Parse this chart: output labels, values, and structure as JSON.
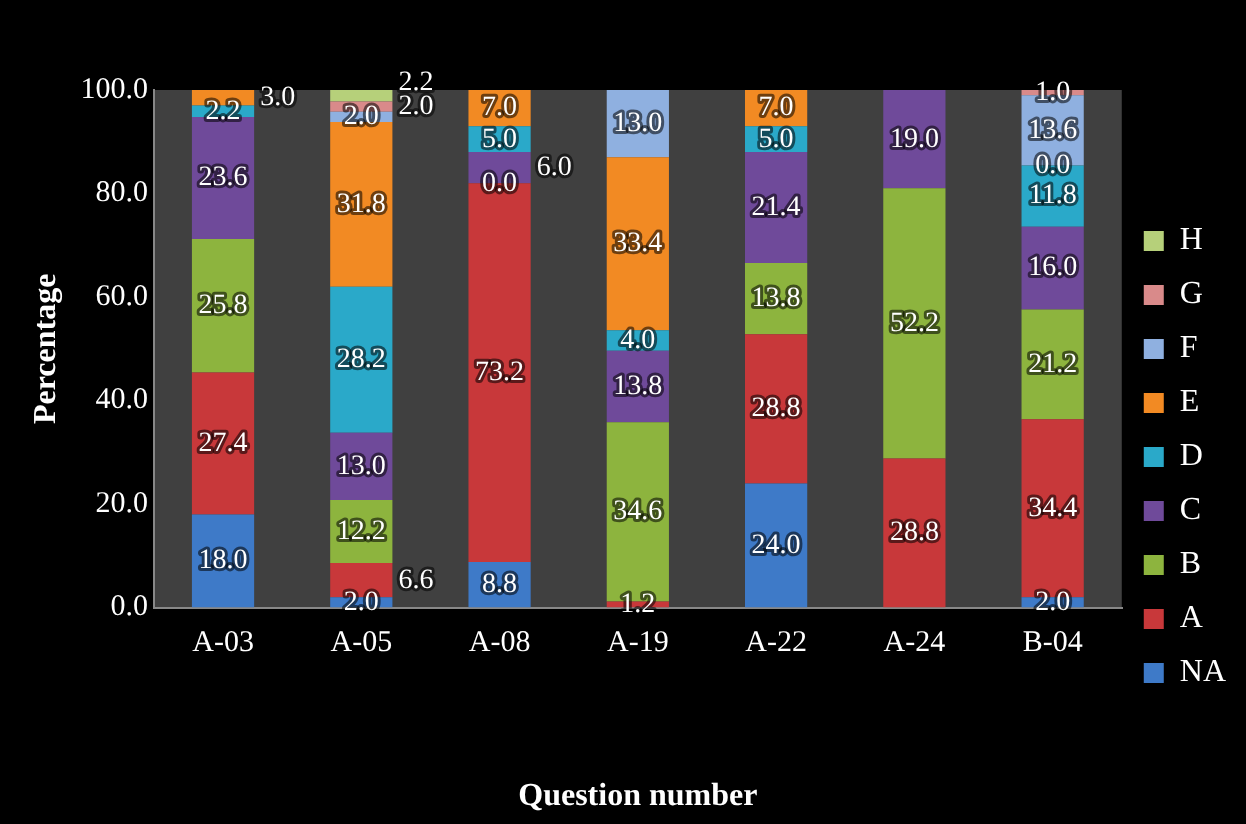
{
  "chart_data": {
    "type": "bar",
    "stacked": true,
    "xlabel": "Question number",
    "ylabel": "Percentage",
    "categories": [
      "A-03",
      "A-05",
      "A-08",
      "A-19",
      "A-22",
      "A-24",
      "B-04"
    ],
    "series": [
      {
        "name": "NA",
        "color": "#3e7ac8",
        "values": [
          18.0,
          2.0,
          8.8,
          null,
          24.0,
          null,
          2.0
        ],
        "value_labels": [
          "18.0",
          "2.0",
          "8.8",
          null,
          "24.0",
          null,
          "2.0"
        ]
      },
      {
        "name": "A",
        "color": "#c8383a",
        "values": [
          27.4,
          6.6,
          73.2,
          1.2,
          28.8,
          28.8,
          34.4
        ],
        "value_labels": [
          "27.4",
          "6.6",
          "73.2",
          "1.2",
          "28.8",
          "28.8",
          "34.4"
        ]
      },
      {
        "name": "B",
        "color": "#8db43e",
        "values": [
          25.8,
          12.2,
          0.0,
          34.6,
          13.8,
          52.2,
          21.2
        ],
        "value_labels": [
          "25.8",
          "12.2",
          "0.0",
          "34.6",
          "13.8",
          "52.2",
          "21.2"
        ]
      },
      {
        "name": "C",
        "color": "#6f4a9a",
        "values": [
          23.6,
          13.0,
          6.0,
          13.8,
          21.4,
          19.0,
          16.0
        ],
        "value_labels": [
          "23.6",
          "13.0",
          "6.0",
          "13.8",
          "21.4",
          "19.0",
          "16.0"
        ]
      },
      {
        "name": "D",
        "color": "#2aa9c9",
        "values": [
          2.2,
          28.2,
          5.0,
          4.0,
          5.0,
          null,
          11.8
        ],
        "value_labels": [
          "2.2",
          "28.2",
          "5.0",
          "4.0",
          "5.0",
          null,
          "11.8"
        ]
      },
      {
        "name": "E",
        "color": "#f28a23",
        "values": [
          3.0,
          31.8,
          7.0,
          33.4,
          7.0,
          null,
          0.0
        ],
        "value_labels": [
          "3.0",
          "31.8",
          "7.0",
          "33.4",
          "7.0",
          null,
          "0.0"
        ]
      },
      {
        "name": "F",
        "color": "#8fb0e0",
        "values": [
          null,
          2.0,
          null,
          13.0,
          null,
          null,
          13.6
        ],
        "value_labels": [
          null,
          "2.0",
          null,
          "13.0",
          null,
          null,
          "13.6"
        ]
      },
      {
        "name": "G",
        "color": "#d98a8a",
        "values": [
          null,
          2.0,
          null,
          null,
          null,
          null,
          1.0
        ],
        "value_labels": [
          null,
          "2.0",
          null,
          null,
          null,
          null,
          "1.0"
        ]
      },
      {
        "name": "H",
        "color": "#b6d07a",
        "values": [
          null,
          2.2,
          null,
          null,
          null,
          null,
          null
        ],
        "value_labels": [
          null,
          "2.2",
          null,
          null,
          null,
          null,
          null
        ]
      }
    ],
    "ylim": [
      0,
      100
    ],
    "yticks": [
      {
        "value": 0,
        "label": "0.0"
      },
      {
        "value": 20,
        "label": "20.0"
      },
      {
        "value": 40,
        "label": "40.0"
      },
      {
        "value": 60,
        "label": "60.0"
      },
      {
        "value": 80,
        "label": "80.0"
      },
      {
        "value": 100,
        "label": "100.0"
      }
    ],
    "grid": false,
    "legend": "right"
  }
}
